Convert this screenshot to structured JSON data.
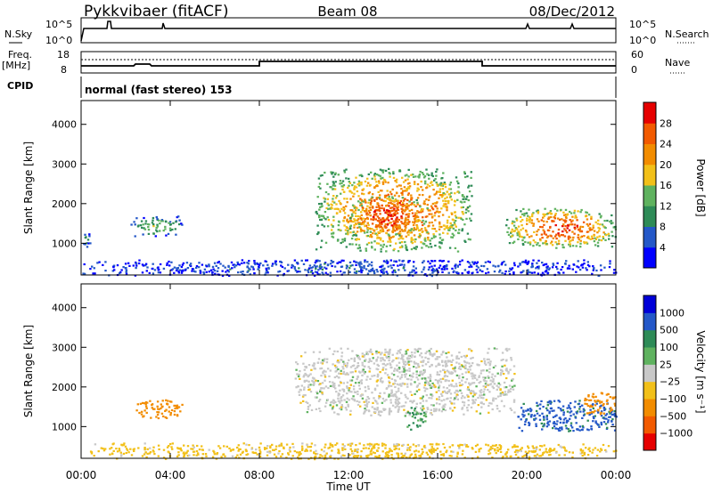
{
  "header": {
    "station": "Pykkvibaer (fitACF)",
    "beam": "Beam 08",
    "date": "08/Dec/2012"
  },
  "top_strip": {
    "left_label": "N.Sky",
    "right_label": "N.Search",
    "ticks_left": [
      "10^5",
      "10^0"
    ],
    "ticks_right": [
      "10^5",
      "10^0"
    ]
  },
  "freq_strip": {
    "label_line1": "Freq.",
    "label_line2": "[MHz]",
    "ticks_left": [
      "18",
      "8"
    ],
    "right_label": "Nave",
    "ticks_right": [
      "60",
      "0"
    ]
  },
  "cpid": {
    "label": "CPID",
    "mode": "normal (fast stereo) 153"
  },
  "x_axis": {
    "label": "Time UT",
    "ticks": [
      "00:00",
      "04:00",
      "08:00",
      "12:00",
      "16:00",
      "20:00",
      "00:00"
    ]
  },
  "colors": {
    "power_scale": [
      "#0000ff",
      "#2458c8",
      "#2e8b57",
      "#5fb25f",
      "#f2c019",
      "#f28c00",
      "#f25a00",
      "#e60000"
    ],
    "velocity_scale": [
      "#e60000",
      "#f25a00",
      "#f28c00",
      "#f2c019",
      "#c8c8c8",
      "#5fb25f",
      "#2e8b57",
      "#2458c8",
      "#0000d8"
    ]
  },
  "chart_data": [
    {
      "type": "heatmap",
      "panel": "power",
      "xlabel": "",
      "ylabel": "Slant Range [km]",
      "x_range_hours": [
        0,
        24
      ],
      "ylim": [
        200,
        4600
      ],
      "yticks": [
        "1000",
        "2000",
        "3000",
        "4000"
      ],
      "colorbar_label": "Power [dB]",
      "colorbar_ticks": [
        "28",
        "24",
        "20",
        "16",
        "12",
        "8",
        "4"
      ],
      "colorbar_range": [
        0,
        32
      ],
      "echo_regions": [
        {
          "t_start": 0.0,
          "t_end": 0.4,
          "r_start": 900,
          "r_end": 1300,
          "level": 8
        },
        {
          "t_start": 2.2,
          "t_end": 4.5,
          "r_start": 1200,
          "r_end": 1700,
          "level": 14
        },
        {
          "t_start": 10.5,
          "t_end": 17.5,
          "r_start": 800,
          "r_end": 2900,
          "level": 26
        },
        {
          "t_start": 12.0,
          "t_end": 15.5,
          "r_start": 1200,
          "r_end": 2200,
          "level": 29
        },
        {
          "t_start": 19.0,
          "t_end": 24.0,
          "r_start": 900,
          "r_end": 1900,
          "level": 27
        },
        {
          "t_start": 0.0,
          "t_end": 24.0,
          "r_start": 200,
          "r_end": 600,
          "level": 6
        }
      ]
    },
    {
      "type": "heatmap",
      "panel": "velocity",
      "xlabel": "Time UT",
      "ylabel": "Slant Range [km]",
      "x_range_hours": [
        0,
        24
      ],
      "ylim": [
        200,
        4600
      ],
      "yticks": [
        "1000",
        "2000",
        "3000",
        "4000"
      ],
      "colorbar_label": "Velocity [m s⁻¹]",
      "colorbar_ticks": [
        "1000",
        "500",
        "100",
        "25",
        "−25",
        "−100",
        "−500",
        "−1000"
      ],
      "colorbar_range": [
        -1000,
        1000
      ],
      "echo_regions": [
        {
          "t_start": 2.4,
          "t_end": 4.5,
          "r_start": 1200,
          "r_end": 1700,
          "velocity": -200
        },
        {
          "t_start": 9.5,
          "t_end": 19.5,
          "r_start": 1300,
          "r_end": 3000,
          "velocity": 0
        },
        {
          "t_start": 14.5,
          "t_end": 15.5,
          "r_start": 900,
          "r_end": 1500,
          "velocity": 100
        },
        {
          "t_start": 19.5,
          "t_end": 24.0,
          "r_start": 900,
          "r_end": 1700,
          "velocity": 700
        },
        {
          "t_start": 22.5,
          "t_end": 24.0,
          "r_start": 1300,
          "r_end": 1900,
          "velocity": -200
        },
        {
          "t_start": 0.0,
          "t_end": 24.0,
          "r_start": 200,
          "r_end": 600,
          "velocity": -50
        }
      ]
    }
  ]
}
